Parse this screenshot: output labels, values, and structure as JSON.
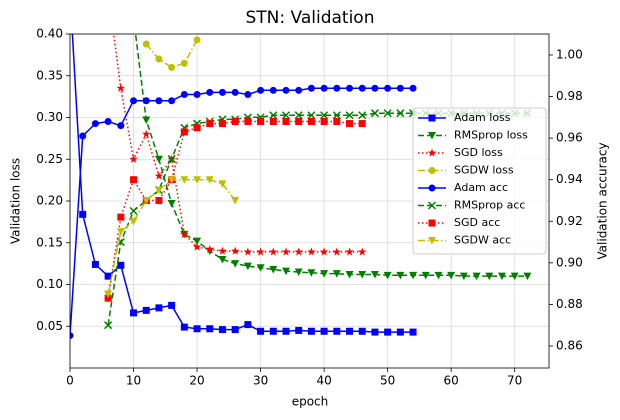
{
  "chart_data": {
    "type": "line",
    "title": "STN: Validation",
    "x_label": "epoch",
    "y_label": "Validation loss",
    "y2_label": "Validation accuracy",
    "x": [
      0,
      2,
      4,
      6,
      8,
      10,
      12,
      14,
      16,
      18,
      20,
      22,
      24,
      26,
      28,
      30,
      32,
      34,
      36,
      38,
      40,
      42,
      44,
      46,
      48,
      50,
      52,
      54,
      56,
      58,
      60,
      62,
      64,
      66,
      68,
      70,
      72
    ],
    "xlim": [
      0,
      75.4
    ],
    "xticks": [
      0,
      10,
      20,
      30,
      40,
      50,
      60,
      70
    ],
    "ylim": [
      0,
      0.4
    ],
    "yticks": [
      0.05,
      {
        "value": 0.1,
        "label": "0.10"
      },
      0.15,
      {
        "value": 0.2,
        "label": "0.20"
      },
      0.25,
      {
        "value": 0.3,
        "label": "0.30"
      },
      0.35,
      {
        "value": 0.4,
        "label": "0.40"
      }
    ],
    "y2lim": [
      0.8494,
      1.0101
    ],
    "y2ticks": [
      0.86,
      0.88,
      {
        "value": 0.9,
        "label": "0.90"
      },
      0.92,
      0.94,
      0.96,
      0.98,
      {
        "value": 1.0,
        "label": "1.00"
      }
    ],
    "grid": true,
    "legend": "center right",
    "series": [
      {
        "name": "Adam loss",
        "color": "#0000ff",
        "linestyle": "solid",
        "marker": "square",
        "axis": "y",
        "values": [
          0.45,
          0.184,
          0.124,
          0.11,
          0.123,
          0.066,
          0.069,
          0.072,
          0.075,
          0.049,
          0.047,
          0.047,
          0.046,
          0.046,
          0.052,
          0.044,
          0.044,
          0.044,
          0.045,
          0.044,
          0.044,
          0.044,
          0.044,
          0.044,
          0.043,
          0.043,
          0.043,
          0.043,
          null,
          null,
          null,
          null,
          null,
          null,
          null,
          null,
          null
        ]
      },
      {
        "name": "RMSprop loss",
        "color": "#008000",
        "linestyle": "dashed",
        "marker": "tri-down",
        "axis": "y",
        "values": [
          null,
          null,
          null,
          null,
          null,
          0.42,
          0.297,
          0.25,
          0.197,
          0.16,
          0.152,
          0.14,
          0.13,
          0.125,
          0.122,
          0.12,
          0.118,
          0.116,
          0.115,
          0.114,
          0.113,
          0.113,
          0.112,
          0.112,
          0.112,
          0.111,
          0.111,
          0.111,
          0.111,
          0.111,
          0.111,
          0.11,
          0.11,
          0.11,
          0.11,
          0.11,
          0.11
        ]
      },
      {
        "name": "SGD loss",
        "color": "#ff0000",
        "linestyle": "dotted",
        "marker": "star",
        "axis": "y",
        "values": [
          null,
          null,
          null,
          0.45,
          0.335,
          0.25,
          0.28,
          0.23,
          0.25,
          0.16,
          0.145,
          0.142,
          0.14,
          0.14,
          0.139,
          0.139,
          0.139,
          0.139,
          0.139,
          0.139,
          0.139,
          0.139,
          0.139,
          0.139,
          null,
          null,
          null,
          null,
          null,
          null,
          null,
          null,
          null,
          null,
          null,
          null,
          null
        ]
      },
      {
        "name": "SGDW loss",
        "color": "#bfbf00",
        "linestyle": "dashdot",
        "marker": "circle",
        "axis": "y",
        "values": [
          null,
          null,
          null,
          null,
          null,
          null,
          0.388,
          0.37,
          0.36,
          0.365,
          0.393,
          null,
          null,
          null,
          null,
          null,
          null,
          null,
          null,
          null,
          null,
          null,
          null,
          null,
          null,
          null,
          null,
          null,
          null,
          null,
          null,
          null,
          null,
          null,
          null,
          null,
          null
        ]
      },
      {
        "name": "Adam acc",
        "color": "#0000ff",
        "linestyle": "solid",
        "marker": "circle",
        "axis": "y2",
        "values": [
          0.865,
          0.961,
          0.967,
          0.968,
          0.966,
          0.978,
          0.978,
          0.978,
          0.978,
          0.981,
          0.981,
          0.982,
          0.982,
          0.982,
          0.981,
          0.983,
          0.983,
          0.983,
          0.983,
          0.984,
          0.984,
          0.984,
          0.984,
          0.984,
          0.984,
          0.984,
          0.984,
          0.984,
          null,
          null,
          null,
          null,
          null,
          null,
          null,
          null,
          null
        ]
      },
      {
        "name": "RMSprop acc",
        "color": "#008000",
        "linestyle": "dashed",
        "marker": "x",
        "axis": "y2",
        "values": [
          null,
          null,
          null,
          0.87,
          0.91,
          0.925,
          0.93,
          0.935,
          0.95,
          0.965,
          0.967,
          0.968,
          0.969,
          0.969,
          0.97,
          0.97,
          0.971,
          0.971,
          0.971,
          0.971,
          0.971,
          0.971,
          0.971,
          0.971,
          0.972,
          0.972,
          0.972,
          0.972,
          0.972,
          0.972,
          0.972,
          0.972,
          0.972,
          0.972,
          0.972,
          0.972,
          0.972
        ]
      },
      {
        "name": "SGD acc",
        "color": "#ff0000",
        "linestyle": "dotted",
        "marker": "square",
        "axis": "y2",
        "values": [
          null,
          null,
          null,
          0.883,
          0.922,
          0.94,
          0.93,
          0.93,
          0.94,
          0.963,
          0.965,
          0.967,
          0.967,
          0.968,
          0.968,
          0.968,
          0.968,
          0.968,
          0.968,
          0.968,
          0.968,
          0.968,
          0.967,
          0.967,
          null,
          null,
          null,
          null,
          null,
          null,
          null,
          null,
          null,
          null,
          null,
          null,
          null
        ]
      },
      {
        "name": "SGDW acc",
        "color": "#bfbf00",
        "linestyle": "dashdot",
        "marker": "tri-down",
        "axis": "y2",
        "values": [
          null,
          null,
          null,
          0.885,
          0.915,
          0.92,
          0.93,
          0.935,
          0.94,
          0.94,
          0.94,
          0.94,
          0.938,
          0.93,
          null,
          null,
          null,
          null,
          null,
          null,
          null,
          null,
          null,
          null,
          null,
          null,
          null,
          null,
          null,
          null,
          null,
          null,
          null,
          null,
          null,
          null,
          null
        ]
      }
    ]
  }
}
